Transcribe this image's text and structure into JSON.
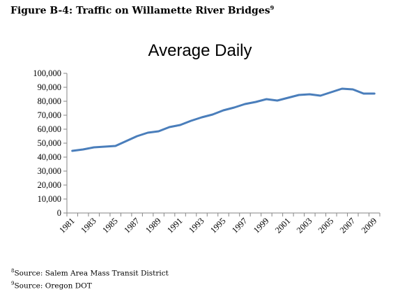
{
  "figure": {
    "label": "Figure B-4:",
    "title": "Traffic on Willamette River Bridges",
    "footnote_ref": "9"
  },
  "chart_data": {
    "type": "line",
    "title": "Average Daily",
    "xlabel": "",
    "ylabel": "",
    "ylim": [
      0,
      100000
    ],
    "y_ticks": [
      "0",
      "10,000",
      "20,000",
      "30,000",
      "40,000",
      "50,000",
      "60,000",
      "70,000",
      "80,000",
      "90,000",
      "100,000"
    ],
    "x_tick_labels": [
      "1981",
      "1983",
      "1985",
      "1987",
      "1989",
      "1991",
      "1993",
      "1995",
      "1997",
      "1999",
      "2001",
      "2003",
      "2005",
      "2007",
      "2009"
    ],
    "x": [
      1981,
      1982,
      1983,
      1984,
      1985,
      1986,
      1987,
      1988,
      1989,
      1990,
      1991,
      1992,
      1993,
      1994,
      1995,
      1996,
      1997,
      1998,
      1999,
      2000,
      2001,
      2002,
      2003,
      2004,
      2005,
      2006,
      2007,
      2008,
      2009
    ],
    "series": [
      {
        "name": "",
        "color": "#4a7ebb",
        "values": [
          44500,
          45500,
          47000,
          47500,
          48000,
          51500,
          55000,
          57500,
          58500,
          61500,
          63000,
          66000,
          68500,
          70500,
          73500,
          75500,
          78000,
          79500,
          81500,
          80500,
          82500,
          84500,
          85000,
          84000,
          86500,
          89000,
          88500,
          85500,
          85500
        ]
      }
    ],
    "grid": false,
    "legend": "none"
  },
  "footnotes": [
    {
      "ref": "8",
      "text": "Source: Salem Area Mass Transit District"
    },
    {
      "ref": "9",
      "text": "Source:  Oregon DOT"
    }
  ]
}
